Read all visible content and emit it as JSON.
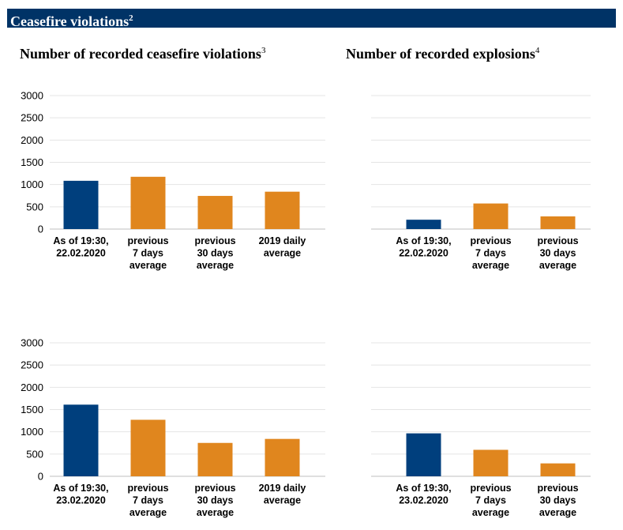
{
  "banner": {
    "title": "Ceasefire violations",
    "footnote": "2"
  },
  "titles": {
    "violations": {
      "text": "Number of recorded ceasefire violations",
      "footnote": "3"
    },
    "explosions": {
      "text": "Number of recorded explosions",
      "footnote": "4"
    }
  },
  "colors": {
    "current": "#003F7D",
    "average": "#E0861E",
    "banner": "#003366",
    "grid": "#e4e4e4"
  },
  "chart_data": [
    {
      "type": "bar",
      "id": "violations-22",
      "categories": [
        [
          "As of 19:30,",
          "22.02.2020"
        ],
        [
          "previous",
          "7 days",
          "average"
        ],
        [
          "previous",
          "30 days",
          "average"
        ],
        [
          "2019 daily",
          "average"
        ]
      ],
      "values": [
        1085,
        1175,
        745,
        840
      ],
      "bar_colors": [
        "current",
        "average",
        "average",
        "average"
      ],
      "yticks": [
        "0",
        "500",
        "1000",
        "1500",
        "2000",
        "2500",
        "3000"
      ],
      "ylim": [
        0,
        3000
      ],
      "grid": true
    },
    {
      "type": "bar",
      "id": "explosions-22",
      "categories": [
        [
          "As of 19:30,",
          "22.02.2020"
        ],
        [
          "previous",
          "7 days",
          "average"
        ],
        [
          "previous",
          "30 days",
          "average"
        ]
      ],
      "values": [
        210,
        575,
        285
      ],
      "bar_colors": [
        "current",
        "average",
        "average"
      ],
      "ylim": [
        0,
        3000
      ],
      "grid": true
    },
    {
      "type": "bar",
      "id": "violations-23",
      "categories": [
        [
          "As of 19:30,",
          "23.02.2020"
        ],
        [
          "previous",
          "7 days",
          "average"
        ],
        [
          "previous",
          "30 days",
          "average"
        ],
        [
          "2019 daily",
          "average"
        ]
      ],
      "values": [
        1610,
        1270,
        750,
        840
      ],
      "bar_colors": [
        "current",
        "average",
        "average",
        "average"
      ],
      "yticks": [
        "0",
        "500",
        "1000",
        "1500",
        "2000",
        "2500",
        "3000"
      ],
      "ylim": [
        0,
        3000
      ],
      "grid": true
    },
    {
      "type": "bar",
      "id": "explosions-23",
      "categories": [
        [
          "As of 19:30,",
          "23.02.2020"
        ],
        [
          "previous",
          "7 days",
          "average"
        ],
        [
          "previous",
          "30 days",
          "average"
        ]
      ],
      "values": [
        965,
        595,
        290
      ],
      "bar_colors": [
        "current",
        "average",
        "average"
      ],
      "ylim": [
        0,
        3000
      ],
      "grid": true
    }
  ]
}
